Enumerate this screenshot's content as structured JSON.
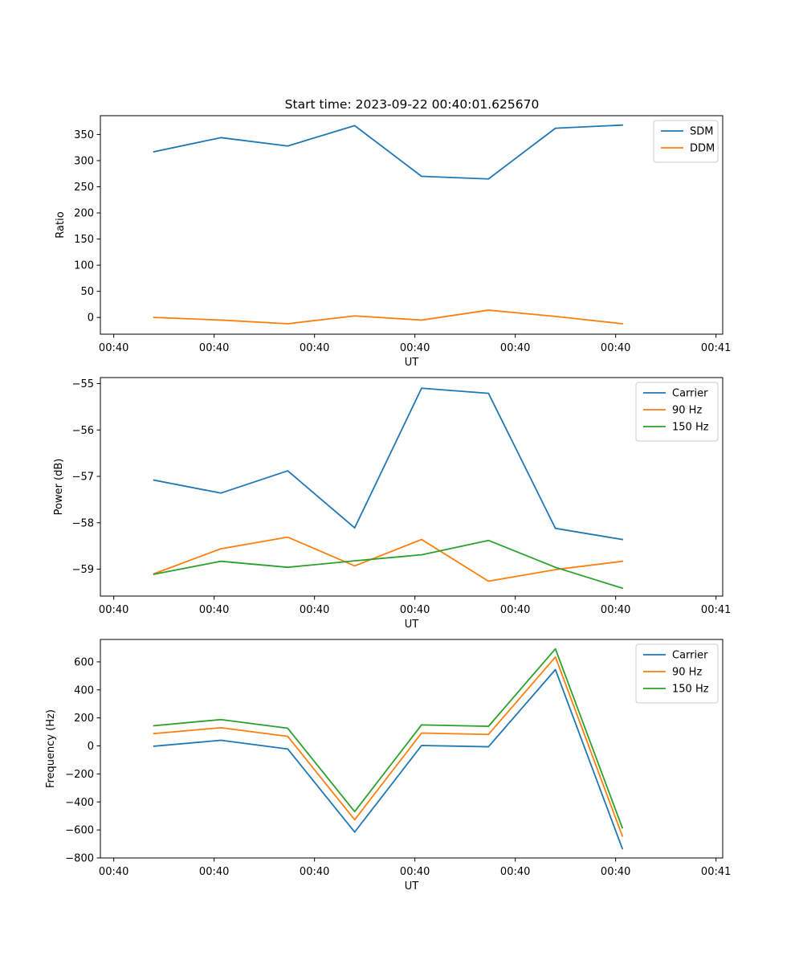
{
  "figure_title": "Start time: 2023-09-22 00:40:01.625670",
  "chart_data": [
    {
      "type": "line",
      "title": "Start time: 2023-09-22 00:40:01.625670",
      "xlabel": "UT",
      "ylabel": "Ratio",
      "x": [
        1,
        2,
        3,
        4,
        5,
        6,
        7,
        8
      ],
      "xlim": [
        0.2,
        9.5
      ],
      "x_ticks": [
        0.4,
        1.9,
        3.4,
        4.9,
        6.4,
        7.9,
        9.4
      ],
      "x_tick_labels": [
        "00:40",
        "00:40",
        "00:40",
        "00:40",
        "00:40",
        "00:40",
        "00:41"
      ],
      "ylim": [
        -32,
        386
      ],
      "y_ticks": [
        0,
        50,
        100,
        150,
        200,
        250,
        300,
        350
      ],
      "y_tick_labels": [
        "0",
        "50",
        "100",
        "150",
        "200",
        "250",
        "300",
        "350"
      ],
      "legend_position": "top-right",
      "series": [
        {
          "name": "SDM",
          "color": "#1f77b4",
          "values": [
            317,
            344,
            328,
            367,
            270,
            265,
            362,
            368
          ]
        },
        {
          "name": "DDM",
          "color": "#ff7f0e",
          "values": [
            0,
            -5,
            -12,
            3,
            -5,
            14,
            2,
            -12
          ]
        }
      ]
    },
    {
      "type": "line",
      "title": "",
      "xlabel": "UT",
      "ylabel": "Power (dB)",
      "x": [
        1,
        2,
        3,
        4,
        5,
        6,
        7,
        8
      ],
      "xlim": [
        0.2,
        9.5
      ],
      "x_ticks": [
        0.4,
        1.9,
        3.4,
        4.9,
        6.4,
        7.9,
        9.4
      ],
      "x_tick_labels": [
        "00:40",
        "00:40",
        "00:40",
        "00:40",
        "00:40",
        "00:40",
        "00:41"
      ],
      "ylim": [
        -59.58,
        -54.87
      ],
      "y_ticks": [
        -59,
        -58,
        -57,
        -56,
        -55
      ],
      "y_tick_labels": [
        "−59",
        "−58",
        "−57",
        "−56",
        "−55"
      ],
      "legend_position": "top-right",
      "series": [
        {
          "name": "Carrier",
          "color": "#1f77b4",
          "values": [
            -57.08,
            -57.36,
            -56.88,
            -58.11,
            -55.1,
            -55.21,
            -58.12,
            -58.36
          ]
        },
        {
          "name": "90 Hz",
          "color": "#ff7f0e",
          "values": [
            -59.1,
            -58.56,
            -58.31,
            -58.93,
            -58.36,
            -59.26,
            -59.01,
            -58.83
          ]
        },
        {
          "name": "150 Hz",
          "color": "#2ca02c",
          "values": [
            -59.11,
            -58.83,
            -58.96,
            -58.82,
            -58.69,
            -58.38,
            -58.96,
            -59.41
          ]
        }
      ]
    },
    {
      "type": "line",
      "title": "",
      "xlabel": "UT",
      "ylabel": "Frequency (Hz)",
      "x": [
        1,
        2,
        3,
        4,
        5,
        6,
        7,
        8
      ],
      "xlim": [
        0.2,
        9.5
      ],
      "x_ticks": [
        0.4,
        1.9,
        3.4,
        4.9,
        6.4,
        7.9,
        9.4
      ],
      "x_tick_labels": [
        "00:40",
        "00:40",
        "00:40",
        "00:40",
        "00:40",
        "00:40",
        "00:41"
      ],
      "ylim": [
        -800,
        760
      ],
      "y_ticks": [
        -800,
        -600,
        -400,
        -200,
        0,
        200,
        400,
        600
      ],
      "y_tick_labels": [
        "−800",
        "−600",
        "−400",
        "−200",
        "0",
        "200",
        "400",
        "600"
      ],
      "legend_position": "top-right",
      "series": [
        {
          "name": "Carrier",
          "color": "#1f77b4",
          "values": [
            -2,
            40,
            -22,
            -615,
            3,
            -6,
            545,
            -733
          ]
        },
        {
          "name": "90 Hz",
          "color": "#ff7f0e",
          "values": [
            88,
            130,
            68,
            -527,
            92,
            82,
            635,
            -643
          ]
        },
        {
          "name": "150 Hz",
          "color": "#2ca02c",
          "values": [
            144,
            188,
            126,
            -469,
            150,
            140,
            693,
            -585
          ]
        }
      ]
    }
  ]
}
